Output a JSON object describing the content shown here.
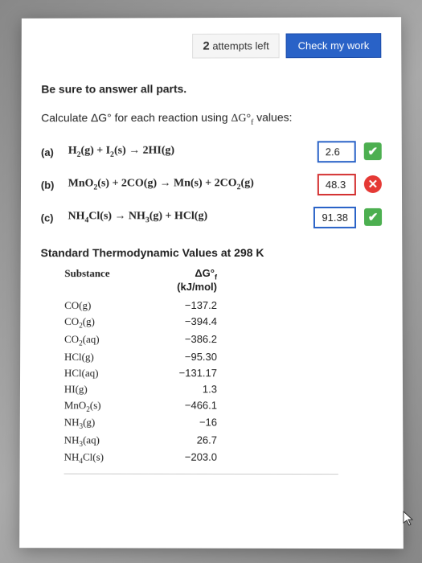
{
  "topbar": {
    "attempts_number": "2",
    "attempts_label": "attempts left",
    "check_label": "Check my work"
  },
  "instruction": "Be sure to answer all parts.",
  "prompt_prefix": "Calculate ΔG° for each reaction using ",
  "prompt_suffix": " values:",
  "reactions": [
    {
      "label": "(a)",
      "equation_html": "H<sub>2</sub>(g) + I<sub>2</sub>(s) → 2HI(g)",
      "answer": "2.6",
      "status": "ok"
    },
    {
      "label": "(b)",
      "equation_html": "MnO<sub>2</sub>(s) + 2CO(g) → Mn(s) + 2CO<sub>2</sub>(g)",
      "answer": "48.3",
      "status": "bad"
    },
    {
      "label": "(c)",
      "equation_html": "NH<sub>4</sub>Cl(s) → NH<sub>3</sub>(g) + HCl(g)",
      "answer": "91.38",
      "status": "ok"
    }
  ],
  "table": {
    "heading": "Standard Thermodynamic Values at 298 K",
    "col1": "Substance",
    "col2_html": "ΔG°<sub>f</sub> (kJ/mol)",
    "rows": [
      {
        "sub_html": "CO(g)",
        "val": "−137.2"
      },
      {
        "sub_html": "CO<sub>2</sub>(g)",
        "val": "−394.4"
      },
      {
        "sub_html": "CO<sub>2</sub>(aq)",
        "val": "−386.2"
      },
      {
        "sub_html": "HCl(g)",
        "val": "−95.30"
      },
      {
        "sub_html": "HCl(aq)",
        "val": "−131.17"
      },
      {
        "sub_html": "HI(g)",
        "val": "1.3"
      },
      {
        "sub_html": "MnO<sub>2</sub>(s)",
        "val": "−466.1"
      },
      {
        "sub_html": "NH<sub>3</sub>(g)",
        "val": "−16"
      },
      {
        "sub_html": "NH<sub>3</sub>(aq)",
        "val": "26.7"
      },
      {
        "sub_html": "NH<sub>4</sub>Cl(s)",
        "val": "−203.0"
      }
    ]
  },
  "status_icons": {
    "ok": "✔",
    "bad": "✕"
  }
}
